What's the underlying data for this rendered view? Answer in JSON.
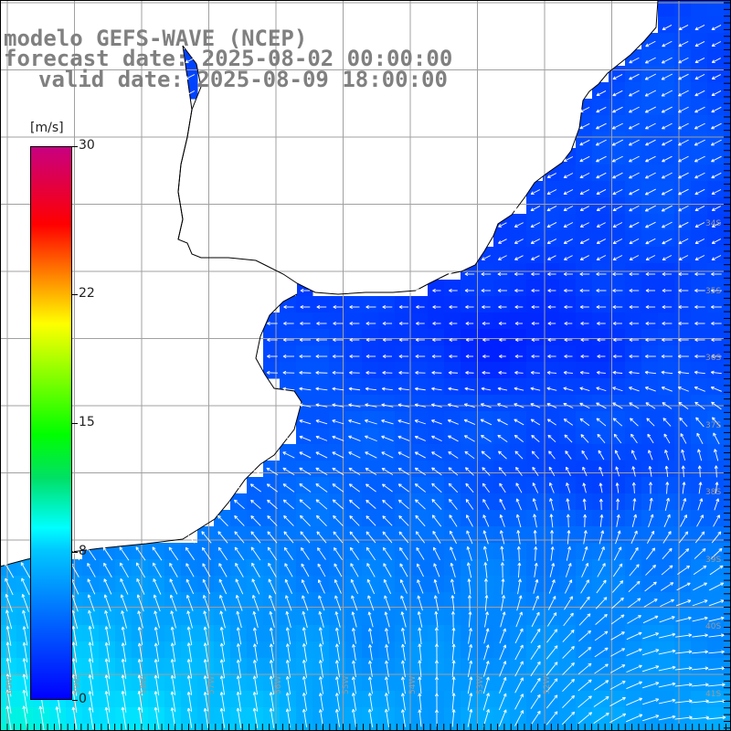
{
  "title": {
    "line1": "modelo GEFS-WAVE (NCEP)",
    "line2": "forecast date: 2025-08-02 00:00:00",
    "line3": "valid date: 2025-08-09 18:00:00"
  },
  "colorbar": {
    "units": "[m/s]",
    "ticks": [
      "30",
      "22",
      "15",
      "8",
      "0"
    ],
    "tick_values": [
      30,
      22,
      15,
      8,
      0
    ],
    "range": [
      0,
      30
    ],
    "colors": [
      "#0000ff",
      "#0064ff",
      "#00c8ff",
      "#00ffff",
      "#00ff00",
      "#ffff00",
      "#ff8000",
      "#ff0000",
      "#c80080"
    ]
  },
  "latitude_labels": [
    "34S",
    "35S",
    "36S",
    "37S",
    "38S",
    "39S",
    "40S",
    "41S"
  ],
  "longitude_labels": [
    "60W",
    "59W",
    "58W",
    "57W",
    "56W",
    "55W",
    "54W",
    "53W",
    "52W"
  ],
  "map": {
    "land_color": "#ffffff",
    "grid_color": "#a0a0a0",
    "coast_color": "#000000",
    "arrow_color": "#ffffff"
  }
}
